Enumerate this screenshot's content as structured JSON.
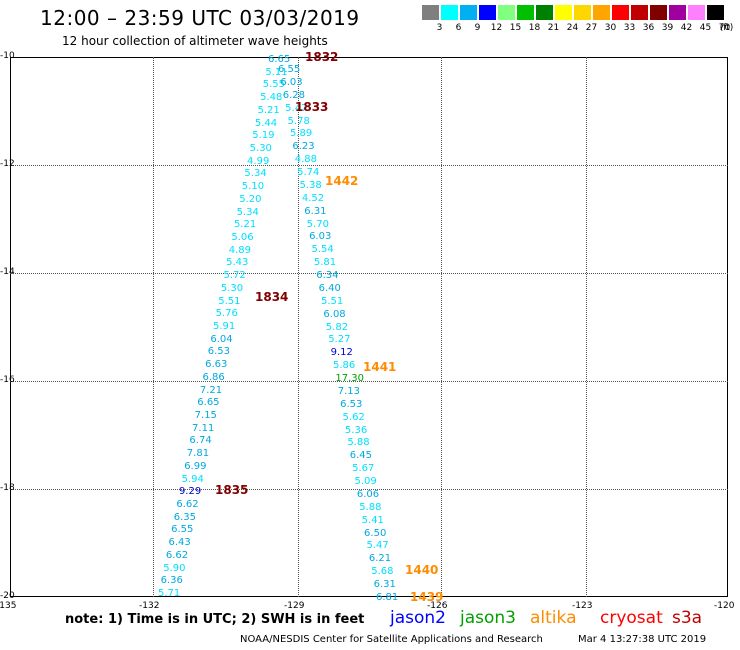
{
  "title": "12:00 – 23:59 UTC 03/03/2019",
  "subtitle": "12 hour collection of altimeter wave heights",
  "legend": {
    "unit": "(ft)",
    "colors": [
      "#7f7f7f",
      "#00ffff",
      "#00b0f0",
      "#0000ff",
      "#80ff80",
      "#00c000",
      "#008000",
      "#ffff00",
      "#ffd700",
      "#ffa500",
      "#ff0000",
      "#c00000",
      "#800000",
      "#a000a0",
      "#ff80ff",
      "#000000"
    ],
    "labels": [
      "3",
      "6",
      "9",
      "12",
      "15",
      "18",
      "21",
      "24",
      "27",
      "30",
      "33",
      "36",
      "39",
      "42",
      "45",
      "70"
    ]
  },
  "axes": {
    "x_ticks": [
      "-135",
      "-132",
      "-129",
      "-126",
      "-123",
      "-120"
    ],
    "y_ticks": [
      "-10",
      "-12",
      "-14",
      "-16",
      "-18",
      "-20"
    ]
  },
  "tracks": {
    "left_values": [
      "6.65",
      "6.55",
      "5.11",
      "6.03",
      "5.55",
      "6.28",
      "5.48",
      "5.47",
      "5.21",
      "5.78",
      "5.44",
      "5.89",
      "5.19",
      "6.23",
      "5.30",
      "4.88",
      "4.99",
      "5.74",
      "5.34",
      "5.38",
      "5.10",
      "4.52",
      "5.20",
      "6.31",
      "5.34",
      "5.70",
      "5.21",
      "6.03",
      "5.06",
      "5.54",
      "4.89",
      "5.81",
      "5.43",
      "6.34",
      "5.72",
      "6.40",
      "5.30",
      "5.51",
      "5.51",
      "6.08",
      "5.76",
      "5.82",
      "5.91",
      "5.27",
      "6.04",
      "9.12",
      "6.53",
      "5.86",
      "6.63",
      "17.30",
      "6.86",
      "7.13",
      "7.21",
      "6.53",
      "6.65",
      "5.62",
      "7.15",
      "5.36",
      "7.11",
      "5.88",
      "6.74",
      "6.45",
      "7.81",
      "5.67",
      "6.99",
      "5.09",
      "5.94",
      "6.06",
      "9.29",
      "5.88",
      "6.62",
      "5.41",
      "6.35",
      "6.50",
      "6.55",
      "5.47",
      "6.43",
      "6.21",
      "6.62",
      "5.68",
      "5.90",
      "6.31",
      "6.36",
      "6.81",
      "5.71"
    ],
    "pass_labels": [
      "1832",
      "1833",
      "1442",
      "1834",
      "1441",
      "1835",
      "1440",
      "1439"
    ],
    "pass_colors": [
      "#800000",
      "#800000",
      "#ff8c00",
      "#800000",
      "#ff8c00",
      "#800000",
      "#ff8c00",
      "#ff8c00"
    ]
  },
  "footer": {
    "note": "note:  1) Time is in UTC;  2) SWH is in feet",
    "missions": [
      "jason2",
      "jason3",
      "altika",
      "cryosat",
      "s3a"
    ],
    "mission_colors": [
      "#0000ff",
      "#00a000",
      "#ff8c00",
      "#ff0000",
      "#c00000"
    ],
    "credit": "NOAA/NESDIS Center for Satellite Applications and Research",
    "timestamp": "Mar  4 13:27:38 UTC 2019"
  }
}
